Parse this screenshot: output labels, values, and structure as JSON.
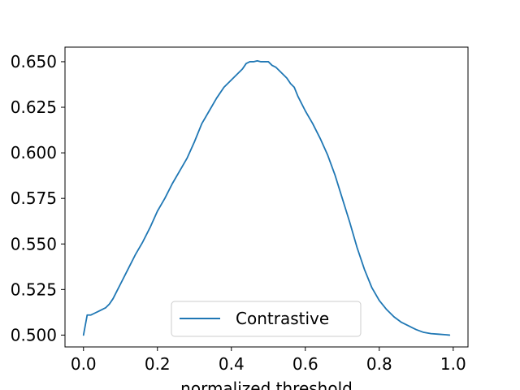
{
  "chart_data": {
    "type": "line",
    "title": "",
    "xlabel": "normalized threshold",
    "ylabel": "",
    "xlim": [
      -0.05,
      1.04
    ],
    "ylim": [
      0.4935,
      0.658
    ],
    "xticks": [
      0.0,
      0.2,
      0.4,
      0.6,
      0.8,
      1.0
    ],
    "xtick_labels": [
      "0.0",
      "0.2",
      "0.4",
      "0.6",
      "0.8",
      "1.0"
    ],
    "yticks": [
      0.5,
      0.525,
      0.55,
      0.575,
      0.6,
      0.625,
      0.65
    ],
    "ytick_labels": [
      "0.500",
      "0.525",
      "0.550",
      "0.575",
      "0.600",
      "0.625",
      "0.650"
    ],
    "grid": false,
    "legend": {
      "position": "lower center",
      "entries": [
        "Contrastive"
      ]
    },
    "series": [
      {
        "name": "Contrastive",
        "color": "#1f77b4",
        "x": [
          0.0,
          0.01,
          0.02,
          0.03,
          0.04,
          0.05,
          0.06,
          0.07,
          0.08,
          0.09,
          0.1,
          0.12,
          0.14,
          0.16,
          0.18,
          0.2,
          0.22,
          0.24,
          0.26,
          0.28,
          0.3,
          0.32,
          0.34,
          0.36,
          0.38,
          0.4,
          0.42,
          0.43,
          0.44,
          0.45,
          0.46,
          0.47,
          0.48,
          0.49,
          0.5,
          0.51,
          0.52,
          0.53,
          0.54,
          0.55,
          0.56,
          0.57,
          0.58,
          0.6,
          0.62,
          0.64,
          0.66,
          0.68,
          0.7,
          0.72,
          0.74,
          0.76,
          0.78,
          0.8,
          0.82,
          0.84,
          0.86,
          0.88,
          0.9,
          0.92,
          0.94,
          0.96,
          0.98,
          0.99
        ],
        "y": [
          0.5,
          0.511,
          0.511,
          0.512,
          0.513,
          0.514,
          0.515,
          0.517,
          0.52,
          0.524,
          0.528,
          0.536,
          0.544,
          0.551,
          0.559,
          0.568,
          0.575,
          0.583,
          0.59,
          0.597,
          0.606,
          0.616,
          0.623,
          0.63,
          0.636,
          0.64,
          0.644,
          0.646,
          0.649,
          0.65,
          0.65,
          0.6505,
          0.65,
          0.65,
          0.65,
          0.648,
          0.647,
          0.645,
          0.643,
          0.641,
          0.638,
          0.636,
          0.631,
          0.623,
          0.616,
          0.608,
          0.599,
          0.588,
          0.575,
          0.562,
          0.548,
          0.536,
          0.526,
          0.519,
          0.514,
          0.51,
          0.507,
          0.505,
          0.503,
          0.5015,
          0.5008,
          0.5005,
          0.5002,
          0.5
        ]
      }
    ]
  }
}
